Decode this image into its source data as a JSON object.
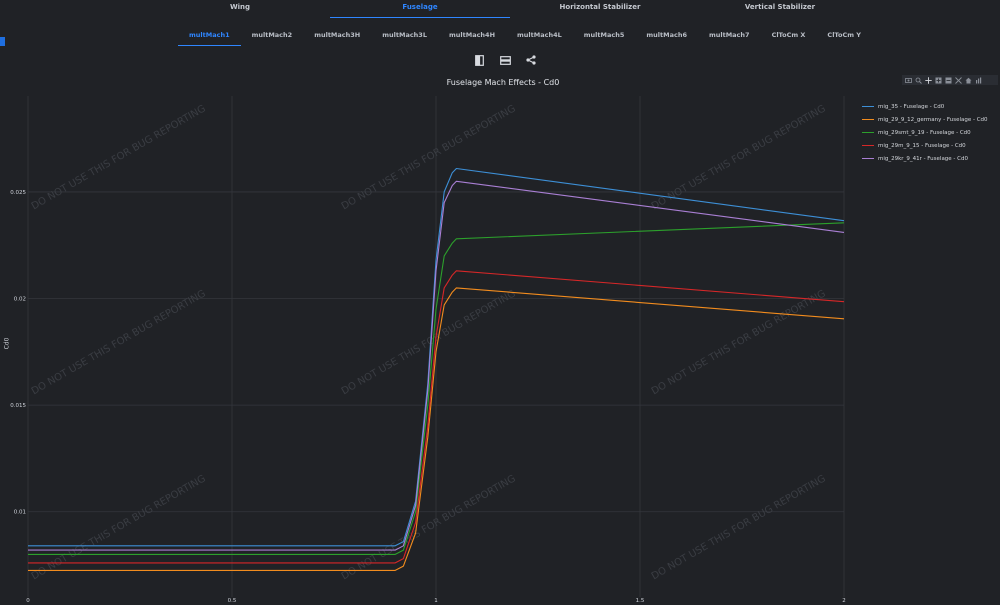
{
  "tabs_top": [
    {
      "label": "Wing",
      "active": false
    },
    {
      "label": "Fuselage",
      "active": true
    },
    {
      "label": "Horizontal Stabilizer",
      "active": false
    },
    {
      "label": "Vertical Stabilizer",
      "active": false
    }
  ],
  "tabs_sub": [
    {
      "label": "multMach1",
      "active": true
    },
    {
      "label": "multMach2",
      "active": false
    },
    {
      "label": "multMach3H",
      "active": false
    },
    {
      "label": "multMach3L",
      "active": false
    },
    {
      "label": "multMach4H",
      "active": false
    },
    {
      "label": "multMach4L",
      "active": false
    },
    {
      "label": "multMach5",
      "active": false
    },
    {
      "label": "multMach6",
      "active": false
    },
    {
      "label": "multMach7",
      "active": false
    },
    {
      "label": "ClToCm X",
      "active": false
    },
    {
      "label": "ClToCm Y",
      "active": false
    }
  ],
  "toolbar": {
    "icons": [
      "split-vertical-icon",
      "split-horizontal-icon",
      "share-icon"
    ]
  },
  "modebar": {
    "icons": [
      "camera-icon",
      "zoom-icon",
      "pan-icon",
      "zoom-in-icon",
      "zoom-out-icon",
      "autoscale-icon",
      "home-icon",
      "plotly-logo-icon"
    ]
  },
  "watermark": "DO NOT USE THIS FOR BUG REPORTING",
  "chart_data": {
    "type": "line",
    "title": "Fuselage Mach Effects - Cd0",
    "xlabel": "",
    "ylabel": "Cd0",
    "xlim": [
      0,
      2
    ],
    "ylim": [
      0.006,
      0.0295
    ],
    "xticks": [
      0,
      0.5,
      1,
      1.5,
      2
    ],
    "xtick_labels": [
      "0",
      "0.5",
      "1",
      "1.5",
      "2"
    ],
    "yticks": [
      0.01,
      0.015,
      0.02,
      0.025
    ],
    "ytick_labels": [
      "0.01",
      "0.015",
      "0.02",
      "0.025"
    ],
    "grid": true,
    "legend_position": "right",
    "series": [
      {
        "name": "mig_35 - Fuselage - Cd0",
        "color": "#3d8fd6",
        "x": [
          0,
          0.9,
          0.92,
          0.95,
          0.98,
          1.0,
          1.02,
          1.04,
          1.05,
          2.0
        ],
        "y": [
          0.0084,
          0.0084,
          0.0086,
          0.0105,
          0.016,
          0.0218,
          0.025,
          0.0259,
          0.0261,
          0.02365
        ]
      },
      {
        "name": "mig_29_9_12_germany - Fuselage - Cd0",
        "color": "#f28c1e",
        "x": [
          0,
          0.9,
          0.92,
          0.95,
          0.98,
          1.0,
          1.02,
          1.04,
          1.05,
          2.0
        ],
        "y": [
          0.00725,
          0.00725,
          0.00745,
          0.009,
          0.0135,
          0.0175,
          0.0197,
          0.0203,
          0.0205,
          0.01905
        ]
      },
      {
        "name": "mig_29smt_9_19 - Fuselage - Cd0",
        "color": "#2ca02c",
        "x": [
          0,
          0.9,
          0.92,
          0.95,
          0.98,
          1.0,
          1.02,
          1.04,
          1.05,
          2.0
        ],
        "y": [
          0.008,
          0.008,
          0.0082,
          0.01,
          0.015,
          0.0195,
          0.022,
          0.0226,
          0.0228,
          0.02355
        ]
      },
      {
        "name": "mig_29m_9_15 - Fuselage - Cd0",
        "color": "#d62728",
        "x": [
          0,
          0.9,
          0.92,
          0.95,
          0.98,
          1.0,
          1.02,
          1.04,
          1.05,
          2.0
        ],
        "y": [
          0.0076,
          0.0076,
          0.0078,
          0.0095,
          0.014,
          0.0182,
          0.0205,
          0.0211,
          0.0213,
          0.01985
        ]
      },
      {
        "name": "mig_29kr_9_41r - Fuselage - Cd0",
        "color": "#a97fd4",
        "x": [
          0,
          0.9,
          0.92,
          0.95,
          0.98,
          1.0,
          1.02,
          1.04,
          1.05,
          2.0
        ],
        "y": [
          0.0082,
          0.0082,
          0.0084,
          0.0103,
          0.0157,
          0.0213,
          0.0245,
          0.0253,
          0.0255,
          0.0231
        ]
      }
    ]
  }
}
